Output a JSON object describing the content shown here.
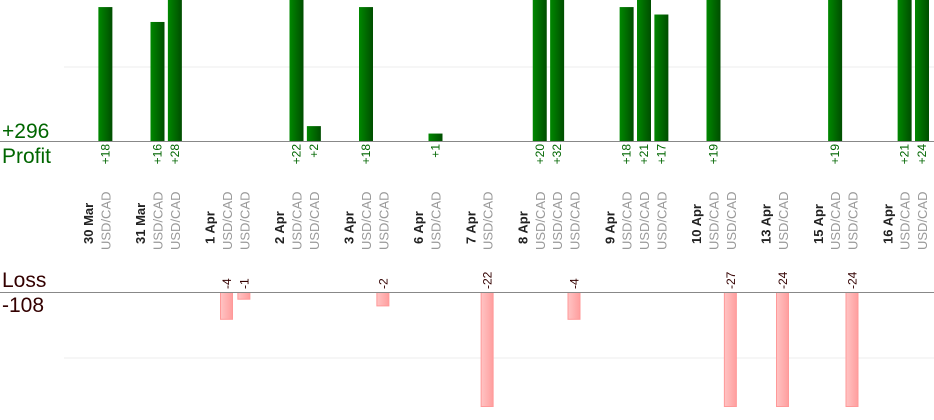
{
  "chart_data": {
    "type": "bar",
    "title": "",
    "profit_total": "+296",
    "profit_label": "Profit",
    "loss_label": "Loss",
    "loss_total": "-108",
    "grid": true,
    "colors": {
      "profit": "#006600",
      "loss": "#ffaaaa",
      "profit_text": "#006600",
      "loss_text": "#330000",
      "pair_text": "#999999"
    },
    "days": [
      {
        "date": "30 Mar",
        "trades": [
          {
            "pair": "USD/CAD",
            "value": 18,
            "label": "+18"
          }
        ]
      },
      {
        "date": "31 Mar",
        "trades": [
          {
            "pair": "USD/CAD",
            "value": 16,
            "label": "+16"
          },
          {
            "pair": "USD/CAD",
            "value": 28,
            "label": "+28"
          }
        ]
      },
      {
        "date": "1 Apr",
        "trades": [
          {
            "pair": "USD/CAD",
            "value": -4,
            "label": "-4"
          },
          {
            "pair": "USD/CAD",
            "value": -1,
            "label": "-1"
          }
        ]
      },
      {
        "date": "2 Apr",
        "trades": [
          {
            "pair": "USD/CAD",
            "value": 22,
            "label": "+22"
          },
          {
            "pair": "USD/CAD",
            "value": 2,
            "label": "+2"
          }
        ]
      },
      {
        "date": "3 Apr",
        "trades": [
          {
            "pair": "USD/CAD",
            "value": 18,
            "label": "+18"
          },
          {
            "pair": "USD/CAD",
            "value": -2,
            "label": "-2"
          }
        ]
      },
      {
        "date": "6 Apr",
        "trades": [
          {
            "pair": "USD/CAD",
            "value": 1,
            "label": "+1"
          }
        ]
      },
      {
        "date": "7 Apr",
        "trades": [
          {
            "pair": "USD/CAD",
            "value": -22,
            "label": "-22"
          }
        ]
      },
      {
        "date": "8 Apr",
        "trades": [
          {
            "pair": "USD/CAD",
            "value": 20,
            "label": "+20"
          },
          {
            "pair": "USD/CAD",
            "value": 32,
            "label": "+32"
          },
          {
            "pair": "USD/CAD",
            "value": -4,
            "label": "-4"
          }
        ]
      },
      {
        "date": "9 Apr",
        "trades": [
          {
            "pair": "USD/CAD",
            "value": 18,
            "label": "+18"
          },
          {
            "pair": "USD/CAD",
            "value": 21,
            "label": "+21"
          },
          {
            "pair": "USD/CAD",
            "value": 17,
            "label": "+17"
          }
        ]
      },
      {
        "date": "10 Apr",
        "trades": [
          {
            "pair": "USD/CAD",
            "value": 19,
            "label": "+19"
          },
          {
            "pair": "USD/CAD",
            "value": -27,
            "label": "-27"
          }
        ]
      },
      {
        "date": "13 Apr",
        "trades": [
          {
            "pair": "USD/CAD",
            "value": -24,
            "label": "-24"
          }
        ]
      },
      {
        "date": "15 Apr",
        "trades": [
          {
            "pair": "USD/CAD",
            "value": 19,
            "label": "+19"
          },
          {
            "pair": "USD/CAD",
            "value": -24,
            "label": "-24"
          }
        ]
      },
      {
        "date": "16 Apr",
        "trades": [
          {
            "pair": "USD/CAD",
            "value": 21,
            "label": "+21"
          },
          {
            "pair": "USD/CAD",
            "value": 24,
            "label": "+24"
          }
        ]
      }
    ]
  }
}
